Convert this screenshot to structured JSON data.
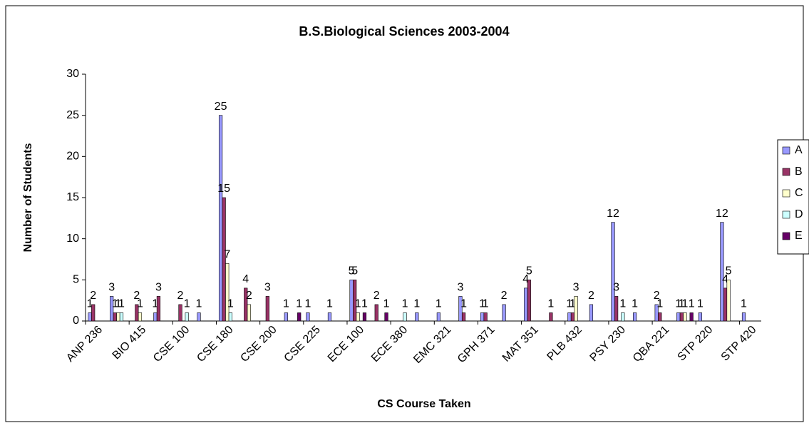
{
  "chart_data": {
    "type": "bar",
    "title": "B.S.Biological Sciences 2003-2004",
    "x_label": "CS Course Taken",
    "y_label": "Number of Students",
    "categories": [
      "ANP 236",
      null,
      "BIO 415",
      null,
      "CSE 100",
      null,
      "CSE 180",
      null,
      "CSE 200",
      null,
      "CSE 225",
      null,
      "ECE 100",
      null,
      "ECE 380",
      null,
      "EMC 321",
      null,
      "GPH 371",
      null,
      "MAT 351",
      null,
      "PLB 432",
      null,
      "PSY 230",
      null,
      "QBA 221",
      null,
      "STP 220",
      null,
      "STP 420"
    ],
    "series": [
      {
        "name": "A",
        "color": "#9999ff",
        "values": [
          1,
          3,
          0,
          1,
          0,
          1,
          25,
          0,
          0,
          1,
          1,
          1,
          5,
          0,
          0,
          1,
          1,
          3,
          1,
          2,
          4,
          0,
          1,
          2,
          12,
          1,
          2,
          1,
          1,
          12,
          1
        ]
      },
      {
        "name": "B",
        "color": "#993366",
        "values": [
          2,
          1,
          2,
          3,
          2,
          0,
          15,
          4,
          3,
          0,
          0,
          0,
          5,
          2,
          0,
          0,
          0,
          1,
          1,
          0,
          5,
          1,
          1,
          0,
          3,
          0,
          1,
          1,
          0,
          4,
          0
        ]
      },
      {
        "name": "C",
        "color": "#ffffcc",
        "values": [
          0,
          1,
          1,
          0,
          0,
          0,
          7,
          2,
          0,
          0,
          0,
          0,
          1,
          0,
          0,
          0,
          0,
          0,
          0,
          0,
          0,
          0,
          3,
          0,
          0,
          0,
          0,
          1,
          0,
          5,
          0
        ]
      },
      {
        "name": "D",
        "color": "#ccffff",
        "values": [
          0,
          1,
          0,
          0,
          1,
          0,
          1,
          0,
          0,
          0,
          0,
          0,
          0,
          0,
          1,
          0,
          0,
          0,
          0,
          0,
          0,
          0,
          0,
          0,
          1,
          0,
          0,
          0,
          0,
          0,
          0
        ]
      },
      {
        "name": "E",
        "color": "#660066",
        "values": [
          0,
          0,
          0,
          0,
          0,
          0,
          0,
          0,
          0,
          1,
          0,
          0,
          1,
          1,
          0,
          0,
          0,
          0,
          0,
          0,
          0,
          0,
          0,
          0,
          0,
          0,
          0,
          1,
          0,
          0,
          0
        ]
      }
    ],
    "ylim": [
      0,
      30
    ],
    "yticks": [
      0,
      5,
      10,
      15,
      20,
      25,
      30
    ],
    "grid": false,
    "legend": "right"
  }
}
